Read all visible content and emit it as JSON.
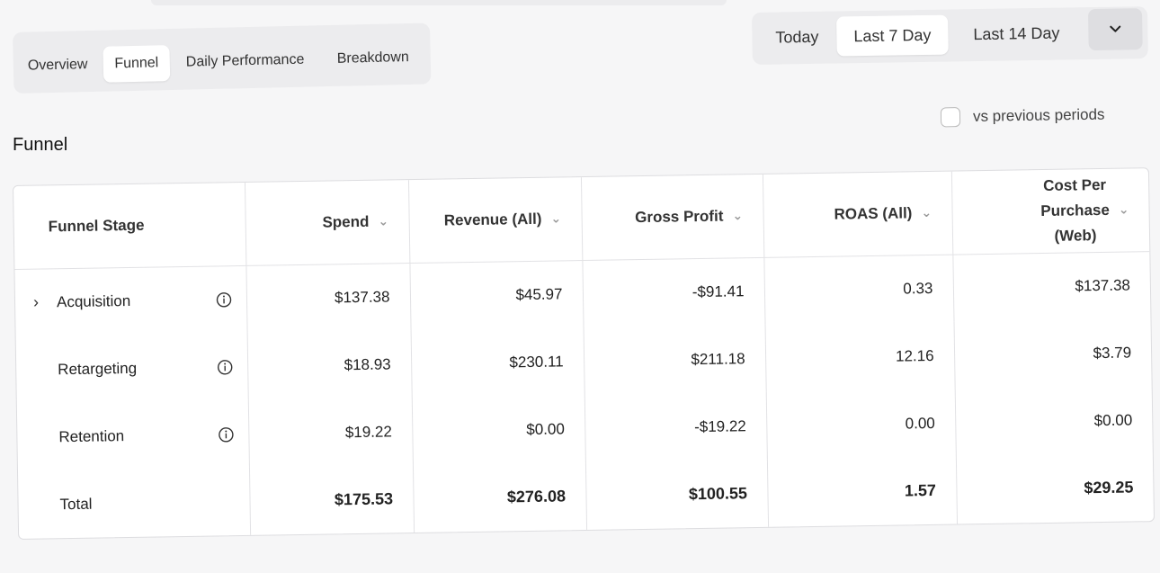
{
  "tabs": [
    {
      "label": "Overview"
    },
    {
      "label": "Funnel"
    },
    {
      "label": "Daily Performance"
    },
    {
      "label": "Breakdown"
    }
  ],
  "active_tab": "Funnel",
  "date_range": {
    "options": [
      "Today",
      "Last 7 Day",
      "Last 14 Day"
    ],
    "selected": "Last 7 Day",
    "dropdown_icon": "chevron-down-icon"
  },
  "compare": {
    "label": "vs previous periods",
    "checked": false
  },
  "section_title": "Funnel",
  "table": {
    "headers": {
      "stage": "Funnel Stage",
      "spend": "Spend",
      "revenue": "Revenue (All)",
      "gross_profit": "Gross Profit",
      "roas": "ROAS (All)",
      "cpp_line1": "Cost Per",
      "cpp_line2": "Purchase",
      "cpp_line3": "(Web)"
    },
    "rows": [
      {
        "stage": "Acquisition",
        "expandable": true,
        "spend": "$137.38",
        "revenue": "$45.97",
        "gross_profit": "-$91.41",
        "roas": "0.33",
        "cpp": "$137.38"
      },
      {
        "stage": "Retargeting",
        "expandable": false,
        "spend": "$18.93",
        "revenue": "$230.11",
        "gross_profit": "$211.18",
        "roas": "12.16",
        "cpp": "$3.79"
      },
      {
        "stage": "Retention",
        "expandable": false,
        "spend": "$19.22",
        "revenue": "$0.00",
        "gross_profit": "-$19.22",
        "roas": "0.00",
        "cpp": "$0.00"
      }
    ],
    "total": {
      "stage": "Total",
      "spend": "$175.53",
      "revenue": "$276.08",
      "gross_profit": "$100.55",
      "roas": "1.57",
      "cpp": "$29.25"
    }
  }
}
